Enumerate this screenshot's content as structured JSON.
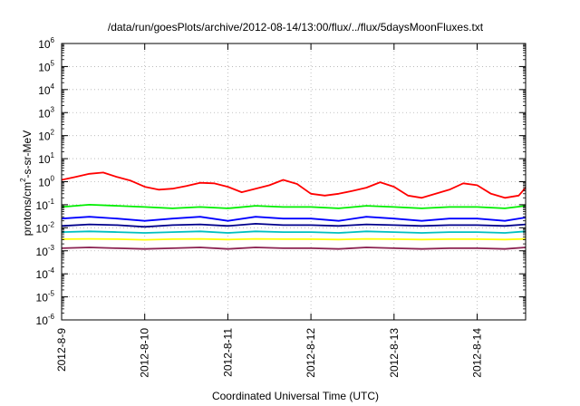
{
  "chart_data": {
    "type": "line",
    "title": "/data/run/goesPlots/archive/2012-08-14/13:00/flux/../flux/5daysMoonFluxes.txt",
    "xlabel": "Coordinated Universal Time (UTC)",
    "ylabel": "protons/cm2-s-sr-MeV",
    "y_scale": "log",
    "ylim": [
      1e-06,
      1000000.0
    ],
    "y_ticks": [
      {
        "value": 1e-06,
        "base": "10",
        "exp": "-6"
      },
      {
        "value": 1e-05,
        "base": "10",
        "exp": "-5"
      },
      {
        "value": 0.0001,
        "base": "10",
        "exp": "-4"
      },
      {
        "value": 0.001,
        "base": "10",
        "exp": "-3"
      },
      {
        "value": 0.01,
        "base": "10",
        "exp": "-2"
      },
      {
        "value": 0.1,
        "base": "10",
        "exp": "-1"
      },
      {
        "value": 1,
        "base": "10",
        "exp": "0"
      },
      {
        "value": 10.0,
        "base": "10",
        "exp": "1"
      },
      {
        "value": 100.0,
        "base": "10",
        "exp": "2"
      },
      {
        "value": 1000.0,
        "base": "10",
        "exp": "3"
      },
      {
        "value": 10000.0,
        "base": "10",
        "exp": "4"
      },
      {
        "value": 100000.0,
        "base": "10",
        "exp": "5"
      },
      {
        "value": 1000000.0,
        "base": "10",
        "exp": "6"
      }
    ],
    "xlim": [
      "2012-08-09T00:00",
      "2012-08-14T14:00"
    ],
    "x_ticks": [
      "2012-8-9",
      "2012-8-10",
      "2012-8-11",
      "2012-8-12",
      "2012-8-13",
      "2012-8-14"
    ],
    "grid": true,
    "legend": "none",
    "series": [
      {
        "color": "#ff0000",
        "x": [
          "2012-08-09T00:00",
          "2012-08-09T04:00",
          "2012-08-09T08:00",
          "2012-08-09T12:00",
          "2012-08-09T16:00",
          "2012-08-09T20:00",
          "2012-08-10T00:00",
          "2012-08-10T04:00",
          "2012-08-10T08:00",
          "2012-08-10T12:00",
          "2012-08-10T16:00",
          "2012-08-10T20:00",
          "2012-08-11T00:00",
          "2012-08-11T04:00",
          "2012-08-11T08:00",
          "2012-08-11T12:00",
          "2012-08-11T16:00",
          "2012-08-11T20:00",
          "2012-08-12T00:00",
          "2012-08-12T04:00",
          "2012-08-12T08:00",
          "2012-08-12T12:00",
          "2012-08-12T16:00",
          "2012-08-12T20:00",
          "2012-08-13T00:00",
          "2012-08-13T04:00",
          "2012-08-13T08:00",
          "2012-08-13T12:00",
          "2012-08-13T16:00",
          "2012-08-13T20:00",
          "2012-08-14T00:00",
          "2012-08-14T04:00",
          "2012-08-14T08:00",
          "2012-08-14T12:00",
          "2012-08-14T14:00"
        ],
        "y": [
          1.2,
          1.6,
          2.2,
          2.5,
          1.6,
          1.1,
          0.6,
          0.45,
          0.5,
          0.65,
          0.9,
          0.85,
          0.6,
          0.35,
          0.5,
          0.7,
          1.2,
          0.8,
          0.3,
          0.25,
          0.3,
          0.4,
          0.55,
          0.95,
          0.6,
          0.25,
          0.2,
          0.3,
          0.45,
          0.85,
          0.7,
          0.3,
          0.2,
          0.25,
          0.55
        ]
      },
      {
        "color": "#00ee00",
        "x": [
          "2012-08-09T00:00",
          "2012-08-09T08:00",
          "2012-08-09T16:00",
          "2012-08-10T00:00",
          "2012-08-10T08:00",
          "2012-08-10T16:00",
          "2012-08-11T00:00",
          "2012-08-11T08:00",
          "2012-08-11T16:00",
          "2012-08-12T00:00",
          "2012-08-12T08:00",
          "2012-08-12T16:00",
          "2012-08-13T00:00",
          "2012-08-13T08:00",
          "2012-08-13T16:00",
          "2012-08-14T00:00",
          "2012-08-14T08:00",
          "2012-08-14T14:00"
        ],
        "y": [
          0.08,
          0.1,
          0.09,
          0.08,
          0.07,
          0.08,
          0.07,
          0.09,
          0.08,
          0.08,
          0.07,
          0.09,
          0.08,
          0.07,
          0.08,
          0.08,
          0.07,
          0.09
        ]
      },
      {
        "color": "#0000ff",
        "x": [
          "2012-08-09T00:00",
          "2012-08-09T08:00",
          "2012-08-09T16:00",
          "2012-08-10T00:00",
          "2012-08-10T08:00",
          "2012-08-10T16:00",
          "2012-08-11T00:00",
          "2012-08-11T08:00",
          "2012-08-11T16:00",
          "2012-08-12T00:00",
          "2012-08-12T08:00",
          "2012-08-12T16:00",
          "2012-08-13T00:00",
          "2012-08-13T08:00",
          "2012-08-13T16:00",
          "2012-08-14T00:00",
          "2012-08-14T08:00",
          "2012-08-14T14:00"
        ],
        "y": [
          0.025,
          0.03,
          0.025,
          0.02,
          0.025,
          0.03,
          0.02,
          0.03,
          0.025,
          0.025,
          0.02,
          0.03,
          0.025,
          0.02,
          0.025,
          0.025,
          0.02,
          0.028
        ]
      },
      {
        "color": "#00008b",
        "x": [
          "2012-08-09T00:00",
          "2012-08-09T08:00",
          "2012-08-09T16:00",
          "2012-08-10T00:00",
          "2012-08-10T08:00",
          "2012-08-10T16:00",
          "2012-08-11T00:00",
          "2012-08-11T08:00",
          "2012-08-11T16:00",
          "2012-08-12T00:00",
          "2012-08-12T08:00",
          "2012-08-12T16:00",
          "2012-08-13T00:00",
          "2012-08-13T08:00",
          "2012-08-13T16:00",
          "2012-08-14T00:00",
          "2012-08-14T08:00",
          "2012-08-14T14:00"
        ],
        "y": [
          0.012,
          0.014,
          0.013,
          0.011,
          0.013,
          0.014,
          0.012,
          0.015,
          0.013,
          0.013,
          0.012,
          0.014,
          0.013,
          0.012,
          0.013,
          0.013,
          0.012,
          0.014
        ]
      },
      {
        "color": "#00c0c0",
        "x": [
          "2012-08-09T00:00",
          "2012-08-09T08:00",
          "2012-08-09T16:00",
          "2012-08-10T00:00",
          "2012-08-10T08:00",
          "2012-08-10T16:00",
          "2012-08-11T00:00",
          "2012-08-11T08:00",
          "2012-08-11T16:00",
          "2012-08-12T00:00",
          "2012-08-12T08:00",
          "2012-08-12T16:00",
          "2012-08-13T00:00",
          "2012-08-13T08:00",
          "2012-08-13T16:00",
          "2012-08-14T00:00",
          "2012-08-14T08:00",
          "2012-08-14T14:00"
        ],
        "y": [
          0.0065,
          0.007,
          0.0065,
          0.006,
          0.0065,
          0.007,
          0.006,
          0.007,
          0.0065,
          0.0065,
          0.006,
          0.007,
          0.0065,
          0.006,
          0.0065,
          0.0065,
          0.006,
          0.007
        ]
      },
      {
        "color": "#ffff00",
        "x": [
          "2012-08-09T00:00",
          "2012-08-09T08:00",
          "2012-08-09T16:00",
          "2012-08-10T00:00",
          "2012-08-10T08:00",
          "2012-08-10T16:00",
          "2012-08-11T00:00",
          "2012-08-11T08:00",
          "2012-08-11T16:00",
          "2012-08-12T00:00",
          "2012-08-12T08:00",
          "2012-08-12T16:00",
          "2012-08-13T00:00",
          "2012-08-13T08:00",
          "2012-08-13T16:00",
          "2012-08-14T00:00",
          "2012-08-14T08:00",
          "2012-08-14T14:00"
        ],
        "y": [
          0.0032,
          0.0033,
          0.0032,
          0.003,
          0.0032,
          0.0033,
          0.0031,
          0.0033,
          0.0032,
          0.0032,
          0.0031,
          0.0033,
          0.0032,
          0.0031,
          0.0032,
          0.0032,
          0.0031,
          0.0033
        ]
      },
      {
        "color": "#8b2252",
        "x": [
          "2012-08-09T00:00",
          "2012-08-09T08:00",
          "2012-08-09T16:00",
          "2012-08-10T00:00",
          "2012-08-10T08:00",
          "2012-08-10T16:00",
          "2012-08-11T00:00",
          "2012-08-11T08:00",
          "2012-08-11T16:00",
          "2012-08-12T00:00",
          "2012-08-12T08:00",
          "2012-08-12T16:00",
          "2012-08-13T00:00",
          "2012-08-13T08:00",
          "2012-08-13T16:00",
          "2012-08-14T00:00",
          "2012-08-14T08:00",
          "2012-08-14T14:00"
        ],
        "y": [
          0.0013,
          0.0014,
          0.0013,
          0.0012,
          0.0013,
          0.0014,
          0.0012,
          0.0014,
          0.0013,
          0.0013,
          0.0012,
          0.0014,
          0.0013,
          0.0012,
          0.0013,
          0.0013,
          0.0012,
          0.0014
        ]
      }
    ]
  }
}
